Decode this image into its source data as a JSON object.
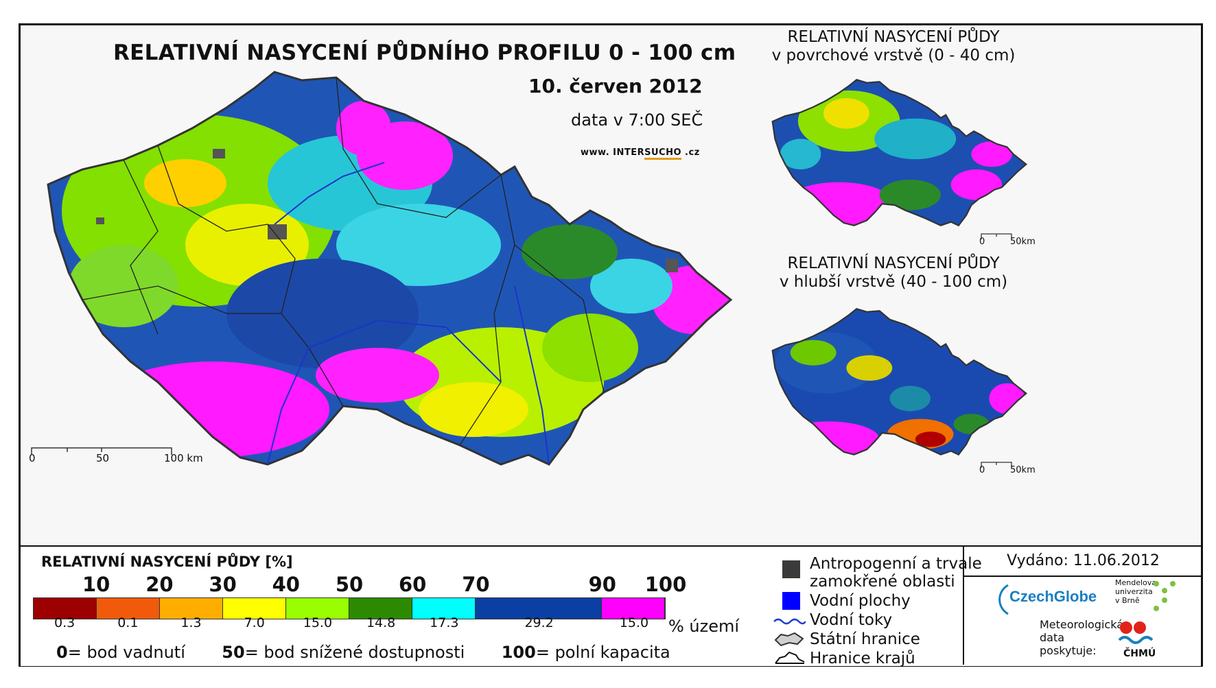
{
  "title": "RELATIVNÍ NASYCENÍ PŮDNÍHO PROFILU 0 - 100 cm",
  "date": "10. červen 2012",
  "data_time": "data v 7:00 SEČ",
  "website": {
    "prefix": "www. INTER",
    "highlight": "SUCHO",
    "suffix": " .cz"
  },
  "main_scale": {
    "labels": [
      "0",
      "50",
      "100 km"
    ]
  },
  "inset_top": {
    "title_line1": "RELATIVNÍ NASYCENÍ PŮDY",
    "title_line2": "v povrchové vrstvě (0 - 40 cm)",
    "scale_labels": [
      "0",
      "50km"
    ]
  },
  "inset_bottom": {
    "title_line1": "RELATIVNÍ NASYCENÍ PŮDY",
    "title_line2": "v hlubší vrstvě (40 - 100 cm)",
    "scale_labels": [
      "0",
      "50km"
    ]
  },
  "legend": {
    "title": "RELATIVNÍ NASYCENÍ PŮDY [%]",
    "ticks": [
      "10",
      "20",
      "30",
      "40",
      "50",
      "60",
      "70",
      "90",
      "100"
    ],
    "tick_values": [
      10,
      20,
      30,
      40,
      50,
      60,
      70,
      90,
      100
    ],
    "classes": [
      {
        "color": "#9c0000",
        "share": "0.3"
      },
      {
        "color": "#f05a0a",
        "share": "0.1"
      },
      {
        "color": "#ffae00",
        "share": "1.3"
      },
      {
        "color": "#ffff00",
        "share": "7.0"
      },
      {
        "color": "#99ff00",
        "share": "15.0"
      },
      {
        "color": "#2c8a00",
        "share": "14.8"
      },
      {
        "color": "#00ffff",
        "share": "17.3"
      },
      {
        "color": "#0a3fa3",
        "share": "29.2"
      },
      {
        "color": "#ff00ff",
        "share": "15.0"
      }
    ],
    "unit": "% území",
    "def_values": [
      "0",
      "50",
      "100"
    ],
    "def_labels": [
      "= bod vadnutí",
      "= bod snížené dostupnosti",
      "= polní kapacita"
    ]
  },
  "keys": [
    {
      "label_line1": "Antropogenní a trvale",
      "label_line2": "zamokřené oblasti",
      "color": "#3a3a3a",
      "icon": "square"
    },
    {
      "label_line1": "Vodní plochy",
      "color": "#0000ff",
      "icon": "square"
    },
    {
      "label_line1": "Vodní toky",
      "color": "#1f3fd0",
      "icon": "wave-line"
    },
    {
      "label_line1": "Státní hranice",
      "color": "#333333",
      "icon": "border-outline"
    },
    {
      "label_line1": "Hranice krajů",
      "color": "#111111",
      "icon": "region-outline"
    }
  ],
  "issued": "Vydáno: 11.06.2012",
  "logos": {
    "czechglobe": "CzechGlobe",
    "mendel": [
      "Mendelova",
      "univerzita",
      "v Brně"
    ],
    "meteo": [
      "Meteorologická",
      "data",
      "poskytuje:"
    ],
    "chmu": "ČHMÚ"
  }
}
